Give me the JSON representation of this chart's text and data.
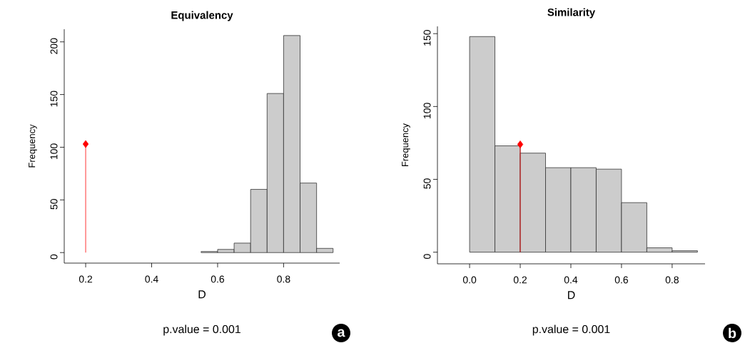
{
  "chart_data": [
    {
      "type": "histogram",
      "title": "Equivalency",
      "xlabel": "D",
      "ylabel": "Frequency",
      "annotations": [
        "p.value = 0.001",
        "a"
      ],
      "xlim": [
        0.135,
        0.97
      ],
      "ylim": [
        -10,
        212
      ],
      "xticks": [
        0.2,
        0.4,
        0.6,
        0.8
      ],
      "yticks": [
        0,
        50,
        100,
        150,
        200
      ],
      "grid": false,
      "series": [
        {
          "color": "#cccccc",
          "bins": [
            0.55,
            0.6,
            0.65,
            0.7,
            0.75,
            0.8,
            0.85,
            0.9,
            0.95
          ],
          "values": [
            1,
            3,
            9,
            60,
            151,
            206,
            66,
            4
          ]
        },
        {
          "type": "lollipop",
          "color": "#ff0000",
          "marker": "diamond",
          "x": [
            0.2
          ],
          "values": [
            103
          ]
        }
      ]
    },
    {
      "type": "histogram",
      "title": "Similarity",
      "xlabel": "D",
      "ylabel": "Frequency",
      "annotations": [
        "p.value = 0.001",
        "b"
      ],
      "xlim": [
        -0.127,
        0.93
      ],
      "ylim": [
        -8,
        155
      ],
      "xticks": [
        {
          "value": 0,
          "label": "0.0"
        },
        0.2,
        0.4,
        0.6,
        0.8
      ],
      "yticks": [
        0,
        50,
        100,
        150
      ],
      "grid": false,
      "series": [
        {
          "color": "#cccccc",
          "bins": [
            0.0,
            0.1,
            0.2,
            0.3,
            0.4,
            0.5,
            0.6,
            0.7,
            0.8,
            0.9
          ],
          "values": [
            148,
            73,
            68,
            58,
            58,
            57,
            34,
            3,
            1
          ]
        },
        {
          "type": "lollipop",
          "color": "#ff0000",
          "marker": "diamond",
          "x": [
            0.2
          ],
          "values": [
            74
          ]
        }
      ]
    }
  ]
}
